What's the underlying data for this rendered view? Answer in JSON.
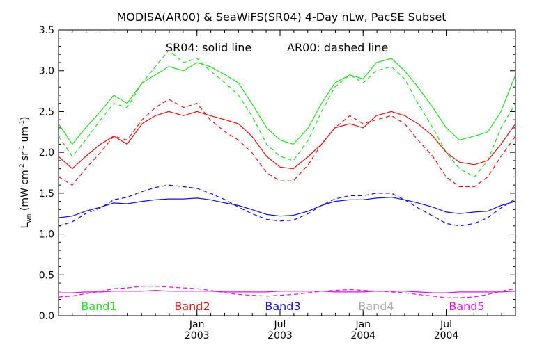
{
  "chart_data": {
    "type": "line",
    "title": "MODISA(AR00) & SeaWiFS(SR04) 4-Day nLw, PacSE Subset",
    "annotation_left": "SR04: solid line",
    "annotation_right": "AR00: dashed line",
    "ylabel": "L_wn (mW cm^-2 sr^-1 um^-1)",
    "ylabel_main": "L",
    "ylabel_sub": "wn",
    "ylabel_units": "(mW cm",
    "ylabel_sup1": "-2",
    "ylabel_sr": " sr",
    "ylabel_sup2": "-1",
    "ylabel_um": " um",
    "ylabel_sup3": "-1",
    "ylabel_close": ")",
    "xlim": [
      2002.167,
      2004.917
    ],
    "ylim": [
      0.0,
      3.5
    ],
    "yticks": [
      0.0,
      0.5,
      1.0,
      1.5,
      2.0,
      2.5,
      3.0,
      3.5
    ],
    "ytick_labels": [
      "0.0",
      "0.5",
      "1.0",
      "1.5",
      "2.0",
      "2.5",
      "3.0",
      "3.5"
    ],
    "xtick_major": [
      {
        "x": 2003.0,
        "month": "Jan",
        "year": "2003"
      },
      {
        "x": 2003.5,
        "month": "Jul",
        "year": "2003"
      },
      {
        "x": 2004.0,
        "month": "Jan",
        "year": "2004"
      },
      {
        "x": 2004.5,
        "month": "Jul",
        "year": "2004"
      }
    ],
    "legend": [
      "Band1",
      "Band2",
      "Band3",
      "Band4",
      "Band5"
    ],
    "colors": {
      "Band1": "#22dd22",
      "Band2": "#dd1111",
      "Band3": "#1111cc",
      "Band4": "#aaaaaa",
      "Band5": "#dd11dd"
    },
    "series": [
      {
        "band": "Band1",
        "sensor": "SR04",
        "style": "solid",
        "x": [
          2002.167,
          2002.25,
          2002.33,
          2002.42,
          2002.5,
          2002.58,
          2002.67,
          2002.75,
          2002.83,
          2002.92,
          2003.0,
          2003.08,
          2003.17,
          2003.25,
          2003.33,
          2003.42,
          2003.5,
          2003.58,
          2003.67,
          2003.75,
          2003.83,
          2003.92,
          2004.0,
          2004.08,
          2004.17,
          2004.25,
          2004.33,
          2004.42,
          2004.5,
          2004.58,
          2004.67,
          2004.75,
          2004.83,
          2004.917
        ],
        "y": [
          2.35,
          2.1,
          2.3,
          2.5,
          2.7,
          2.6,
          2.85,
          2.95,
          3.05,
          3.0,
          3.1,
          3.05,
          2.95,
          2.85,
          2.6,
          2.3,
          2.15,
          2.1,
          2.3,
          2.6,
          2.85,
          2.95,
          2.9,
          3.1,
          3.15,
          3.0,
          2.8,
          2.55,
          2.3,
          2.15,
          2.2,
          2.25,
          2.5,
          2.95
        ]
      },
      {
        "band": "Band1",
        "sensor": "AR00",
        "style": "dashed",
        "x": [
          2002.167,
          2002.25,
          2002.33,
          2002.42,
          2002.5,
          2002.58,
          2002.67,
          2002.75,
          2002.83,
          2002.92,
          2003.0,
          2003.08,
          2003.17,
          2003.25,
          2003.33,
          2003.42,
          2003.5,
          2003.58,
          2003.67,
          2003.75,
          2003.83,
          2003.92,
          2004.0,
          2004.08,
          2004.17,
          2004.25,
          2004.33,
          2004.42,
          2004.5,
          2004.58,
          2004.67,
          2004.75,
          2004.83,
          2004.917
        ],
        "y": [
          2.2,
          1.95,
          2.15,
          2.4,
          2.6,
          2.55,
          2.85,
          3.05,
          3.25,
          3.1,
          3.15,
          3.0,
          2.85,
          2.7,
          2.45,
          2.1,
          1.95,
          1.9,
          2.15,
          2.5,
          2.8,
          2.95,
          2.85,
          3.0,
          3.05,
          2.9,
          2.6,
          2.3,
          2.0,
          1.8,
          1.7,
          1.9,
          2.3,
          2.6
        ]
      },
      {
        "band": "Band2",
        "sensor": "SR04",
        "style": "solid",
        "x": [
          2002.167,
          2002.25,
          2002.33,
          2002.42,
          2002.5,
          2002.58,
          2002.67,
          2002.75,
          2002.83,
          2002.92,
          2003.0,
          2003.08,
          2003.17,
          2003.25,
          2003.33,
          2003.42,
          2003.5,
          2003.58,
          2003.67,
          2003.75,
          2003.83,
          2003.92,
          2004.0,
          2004.08,
          2004.17,
          2004.25,
          2004.33,
          2004.42,
          2004.5,
          2004.58,
          2004.67,
          2004.75,
          2004.83,
          2004.917
        ],
        "y": [
          1.95,
          1.8,
          1.95,
          2.1,
          2.2,
          2.1,
          2.35,
          2.45,
          2.5,
          2.45,
          2.5,
          2.45,
          2.4,
          2.35,
          2.2,
          1.95,
          1.82,
          1.8,
          1.95,
          2.1,
          2.3,
          2.35,
          2.3,
          2.45,
          2.5,
          2.45,
          2.35,
          2.2,
          2.0,
          1.88,
          1.85,
          1.9,
          2.1,
          2.35
        ]
      },
      {
        "band": "Band2",
        "sensor": "AR00",
        "style": "dashed",
        "x": [
          2002.167,
          2002.25,
          2002.33,
          2002.42,
          2002.5,
          2002.58,
          2002.67,
          2002.75,
          2002.83,
          2002.92,
          2003.0,
          2003.08,
          2003.17,
          2003.25,
          2003.33,
          2003.42,
          2003.5,
          2003.58,
          2003.67,
          2003.75,
          2003.83,
          2003.92,
          2004.0,
          2004.08,
          2004.17,
          2004.25,
          2004.33,
          2004.42,
          2004.5,
          2004.58,
          2004.67,
          2004.75,
          2004.83,
          2004.917
        ],
        "y": [
          1.7,
          1.6,
          1.8,
          2.0,
          2.2,
          2.15,
          2.4,
          2.55,
          2.65,
          2.55,
          2.6,
          2.4,
          2.25,
          2.15,
          2.0,
          1.75,
          1.65,
          1.65,
          1.85,
          2.1,
          2.3,
          2.45,
          2.35,
          2.4,
          2.45,
          2.35,
          2.15,
          1.95,
          1.7,
          1.58,
          1.58,
          1.7,
          1.95,
          2.2
        ]
      },
      {
        "band": "Band3",
        "sensor": "SR04",
        "style": "solid",
        "x": [
          2002.167,
          2002.25,
          2002.33,
          2002.42,
          2002.5,
          2002.58,
          2002.67,
          2002.75,
          2002.83,
          2002.92,
          2003.0,
          2003.08,
          2003.17,
          2003.25,
          2003.33,
          2003.42,
          2003.5,
          2003.58,
          2003.67,
          2003.75,
          2003.83,
          2003.92,
          2004.0,
          2004.08,
          2004.17,
          2004.25,
          2004.33,
          2004.42,
          2004.5,
          2004.58,
          2004.67,
          2004.75,
          2004.83,
          2004.917
        ],
        "y": [
          1.2,
          1.22,
          1.28,
          1.33,
          1.38,
          1.37,
          1.4,
          1.42,
          1.43,
          1.43,
          1.44,
          1.42,
          1.38,
          1.35,
          1.3,
          1.24,
          1.22,
          1.23,
          1.28,
          1.35,
          1.4,
          1.42,
          1.42,
          1.44,
          1.45,
          1.42,
          1.38,
          1.33,
          1.27,
          1.25,
          1.27,
          1.28,
          1.35,
          1.4
        ]
      },
      {
        "band": "Band3",
        "sensor": "AR00",
        "style": "dashed",
        "x": [
          2002.167,
          2002.25,
          2002.33,
          2002.42,
          2002.5,
          2002.58,
          2002.67,
          2002.75,
          2002.83,
          2002.92,
          2003.0,
          2003.08,
          2003.17,
          2003.25,
          2003.33,
          2003.42,
          2003.5,
          2003.58,
          2003.67,
          2003.75,
          2003.83,
          2003.92,
          2004.0,
          2004.08,
          2004.17,
          2004.25,
          2004.33,
          2004.42,
          2004.5,
          2004.58,
          2004.67,
          2004.75,
          2004.83,
          2004.917
        ],
        "y": [
          1.1,
          1.15,
          1.25,
          1.32,
          1.42,
          1.45,
          1.52,
          1.57,
          1.6,
          1.58,
          1.56,
          1.5,
          1.42,
          1.33,
          1.25,
          1.18,
          1.16,
          1.17,
          1.25,
          1.35,
          1.43,
          1.47,
          1.47,
          1.5,
          1.5,
          1.42,
          1.32,
          1.22,
          1.13,
          1.1,
          1.13,
          1.2,
          1.32,
          1.43
        ]
      },
      {
        "band": "Band5",
        "sensor": "SR04",
        "style": "solid",
        "x": [
          2002.167,
          2002.25,
          2002.33,
          2002.42,
          2002.5,
          2002.58,
          2002.67,
          2002.75,
          2002.83,
          2002.92,
          2003.0,
          2003.08,
          2003.17,
          2003.25,
          2003.33,
          2003.42,
          2003.5,
          2003.58,
          2003.67,
          2003.75,
          2003.83,
          2003.92,
          2004.0,
          2004.08,
          2004.17,
          2004.25,
          2004.33,
          2004.42,
          2004.5,
          2004.58,
          2004.67,
          2004.75,
          2004.83,
          2004.917
        ],
        "y": [
          0.28,
          0.28,
          0.29,
          0.29,
          0.3,
          0.3,
          0.3,
          0.31,
          0.3,
          0.3,
          0.3,
          0.3,
          0.29,
          0.29,
          0.29,
          0.29,
          0.3,
          0.3,
          0.3,
          0.3,
          0.29,
          0.29,
          0.29,
          0.3,
          0.3,
          0.3,
          0.29,
          0.28,
          0.28,
          0.29,
          0.29,
          0.29,
          0.29,
          0.3
        ]
      },
      {
        "band": "Band5",
        "sensor": "AR00",
        "style": "dashed",
        "x": [
          2002.167,
          2002.25,
          2002.33,
          2002.42,
          2002.5,
          2002.58,
          2002.67,
          2002.75,
          2002.83,
          2002.92,
          2003.0,
          2003.08,
          2003.17,
          2003.25,
          2003.33,
          2003.42,
          2003.5,
          2003.58,
          2003.67,
          2003.75,
          2003.83,
          2003.92,
          2004.0,
          2004.08,
          2004.17,
          2004.25,
          2004.33,
          2004.42,
          2004.5,
          2004.58,
          2004.67,
          2004.75,
          2004.83,
          2004.917
        ],
        "y": [
          0.23,
          0.24,
          0.27,
          0.3,
          0.33,
          0.34,
          0.36,
          0.36,
          0.35,
          0.34,
          0.33,
          0.31,
          0.28,
          0.26,
          0.25,
          0.24,
          0.25,
          0.26,
          0.28,
          0.3,
          0.31,
          0.32,
          0.31,
          0.3,
          0.29,
          0.28,
          0.26,
          0.24,
          0.22,
          0.22,
          0.23,
          0.26,
          0.3,
          0.33
        ]
      }
    ]
  }
}
